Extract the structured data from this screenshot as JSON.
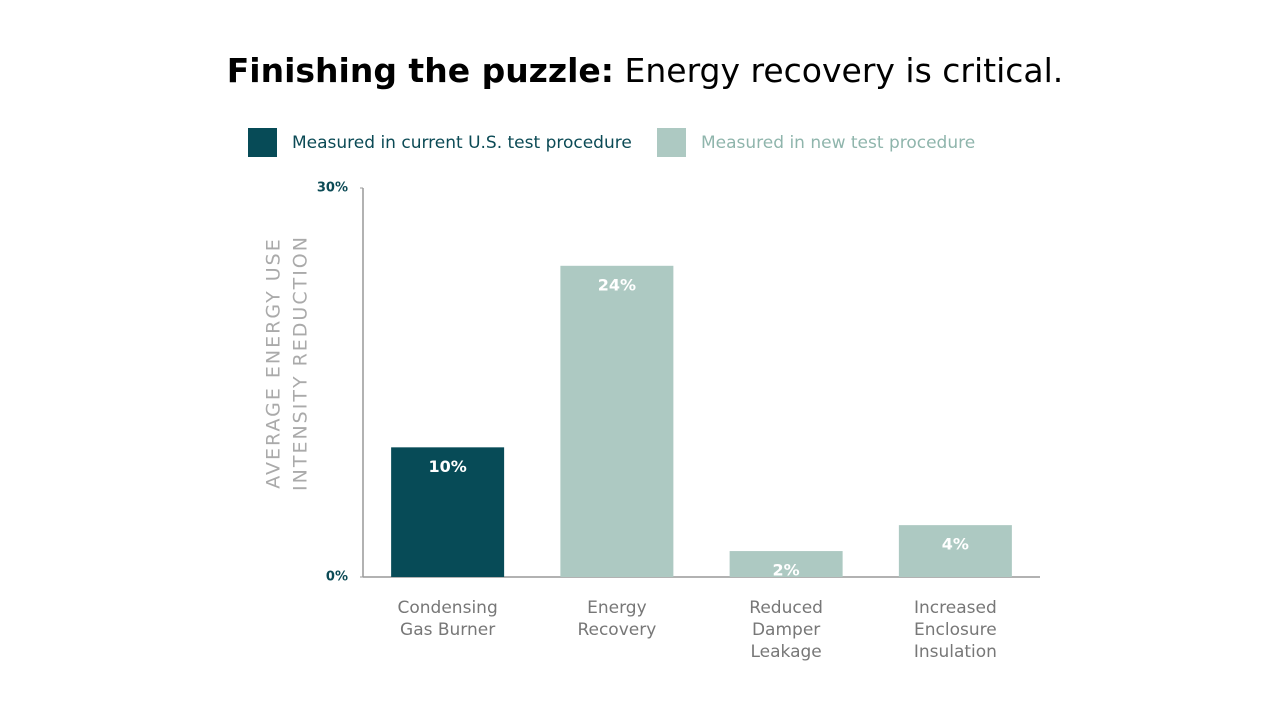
{
  "chart_data": {
    "type": "bar",
    "title_emphasis": "Finishing the puzzle:",
    "title": "Energy recovery is critical.",
    "ylabel": [
      "AVERAGE ENERGY USE",
      "INTENSITY REDUCTION"
    ],
    "categories": [
      "Condensing Gas Burner",
      "Energy Recovery",
      "Reduced Damper Leakage",
      "Increased Enclosure Insulation"
    ],
    "series": [
      {
        "name": "Measured in current U.S. test procedure",
        "color": "#074b57",
        "values": [
          10,
          null,
          null,
          null
        ],
        "value_labels": [
          "10%",
          null,
          null,
          null
        ]
      },
      {
        "name": "Measured in new test procedure",
        "color": "#adc9c2",
        "values": [
          null,
          24,
          2,
          4
        ],
        "value_labels": [
          null,
          "24%",
          "2%",
          "4%"
        ]
      }
    ],
    "ylim": [
      0,
      30
    ],
    "yticks": [
      {
        "value": 0,
        "label": "0%"
      },
      {
        "value": 30,
        "label": "30%"
      }
    ],
    "grid": false,
    "legend": "top"
  }
}
